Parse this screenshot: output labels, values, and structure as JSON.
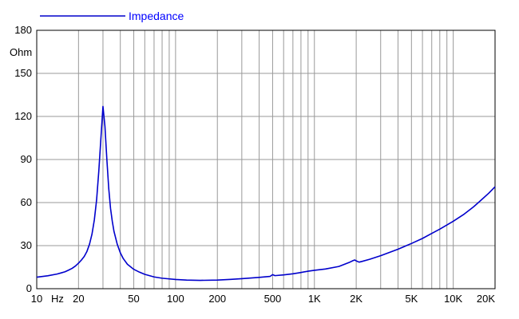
{
  "chart_data": {
    "type": "line",
    "title": "",
    "xlabel": "Hz",
    "ylabel": "Ohm",
    "x_scale": "log",
    "xlim": [
      10,
      20000
    ],
    "ylim": [
      0,
      180
    ],
    "grid": true,
    "legend_position": "top-left",
    "x_ticks": [
      {
        "value": 10,
        "label": "10"
      },
      {
        "value": 20,
        "label": "20"
      },
      {
        "value": 50,
        "label": "50"
      },
      {
        "value": 100,
        "label": "100"
      },
      {
        "value": 200,
        "label": "200"
      },
      {
        "value": 500,
        "label": "500"
      },
      {
        "value": 1000,
        "label": "1K"
      },
      {
        "value": 2000,
        "label": "2K"
      },
      {
        "value": 5000,
        "label": "5K"
      },
      {
        "value": 10000,
        "label": "10K"
      },
      {
        "value": 20000,
        "label": "20K"
      }
    ],
    "y_ticks": [
      {
        "value": 0,
        "label": "0"
      },
      {
        "value": 30,
        "label": "30"
      },
      {
        "value": 60,
        "label": "60"
      },
      {
        "value": 90,
        "label": "90"
      },
      {
        "value": 120,
        "label": "120"
      },
      {
        "value": 150,
        "label": "150"
      },
      {
        "value": 180,
        "label": "180"
      }
    ],
    "series": [
      {
        "name": "Impedance",
        "color": "#0000cc",
        "points": [
          [
            10,
            8.0
          ],
          [
            12,
            9.0
          ],
          [
            14,
            10.2
          ],
          [
            15,
            11
          ],
          [
            16,
            11.8
          ],
          [
            17,
            13
          ],
          [
            18,
            14.2
          ],
          [
            19,
            15.8
          ],
          [
            20,
            17.8
          ],
          [
            21,
            20
          ],
          [
            22,
            22.5
          ],
          [
            23,
            26
          ],
          [
            24,
            31
          ],
          [
            25,
            38
          ],
          [
            26,
            48
          ],
          [
            27,
            62
          ],
          [
            28,
            82
          ],
          [
            29,
            105
          ],
          [
            30,
            127
          ],
          [
            31,
            113
          ],
          [
            32,
            90
          ],
          [
            33,
            70
          ],
          [
            34,
            56
          ],
          [
            35,
            47
          ],
          [
            36,
            40
          ],
          [
            38,
            31
          ],
          [
            40,
            25
          ],
          [
            42,
            21
          ],
          [
            45,
            17
          ],
          [
            50,
            13.5
          ],
          [
            55,
            11.5
          ],
          [
            60,
            10
          ],
          [
            70,
            8.2
          ],
          [
            80,
            7.3
          ],
          [
            100,
            6.4
          ],
          [
            120,
            6.0
          ],
          [
            150,
            5.8
          ],
          [
            200,
            6.0
          ],
          [
            250,
            6.5
          ],
          [
            300,
            7.0
          ],
          [
            400,
            7.9
          ],
          [
            480,
            8.6
          ],
          [
            500,
            9.8
          ],
          [
            520,
            9.1
          ],
          [
            600,
            9.6
          ],
          [
            700,
            10.4
          ],
          [
            800,
            11.3
          ],
          [
            900,
            12.2
          ],
          [
            1000,
            12.8
          ],
          [
            1200,
            13.7
          ],
          [
            1500,
            15.5
          ],
          [
            1800,
            18.5
          ],
          [
            1900,
            19.6
          ],
          [
            1950,
            20.0
          ],
          [
            2000,
            19.4
          ],
          [
            2100,
            18.5
          ],
          [
            2200,
            19.0
          ],
          [
            2500,
            20.5
          ],
          [
            3000,
            23
          ],
          [
            4000,
            27.5
          ],
          [
            5000,
            31.5
          ],
          [
            6000,
            35
          ],
          [
            7000,
            38.5
          ],
          [
            8000,
            41.5
          ],
          [
            10000,
            47
          ],
          [
            12000,
            52
          ],
          [
            14000,
            57
          ],
          [
            16000,
            62
          ],
          [
            18000,
            66.5
          ],
          [
            20000,
            71
          ]
        ]
      }
    ]
  }
}
